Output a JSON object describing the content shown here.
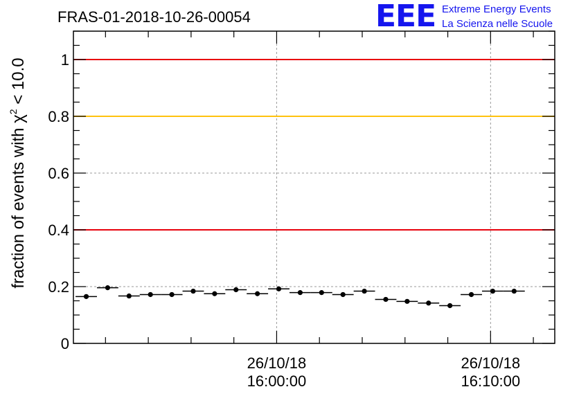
{
  "chart_data": {
    "type": "scatter",
    "title": "FRAS-01-2018-10-26-00054",
    "ylabel": "fraction of events with χ² < 10.0",
    "ylabel_prefix": "fraction of events with ",
    "ylabel_chi": "χ",
    "ylabel_sup": "2",
    "ylabel_suffix": " < 10.0",
    "xlabel": "",
    "ylim": [
      0,
      1.1
    ],
    "xlim_minutes": [
      -9.5,
      13.0
    ],
    "yticks": [
      0,
      0.2,
      0.4,
      0.6,
      0.8,
      1
    ],
    "ytick_labels": [
      "0",
      "0.2",
      "0.4",
      "0.6",
      "0.8",
      "1"
    ],
    "xticks_major": [
      {
        "minutes": 0,
        "date": "26/10/18",
        "time": "16:00:00"
      },
      {
        "minutes": 10,
        "date": "26/10/18",
        "time": "16:10:00"
      }
    ],
    "xticks_minor_minutes": [
      -8,
      -6,
      -4,
      -2,
      2,
      4,
      6,
      8,
      12
    ],
    "reference_lines": [
      {
        "y": 1.0,
        "color": "#e8000b"
      },
      {
        "y": 0.8,
        "color": "#ffc20e"
      },
      {
        "y": 0.4,
        "color": "#e8000b"
      }
    ],
    "grid": true,
    "bin_width_minutes": 1.0,
    "points": [
      {
        "x": -8.9,
        "y": 0.165
      },
      {
        "x": -7.9,
        "y": 0.196
      },
      {
        "x": -6.9,
        "y": 0.167
      },
      {
        "x": -5.9,
        "y": 0.172
      },
      {
        "x": -4.9,
        "y": 0.172
      },
      {
        "x": -3.9,
        "y": 0.184
      },
      {
        "x": -2.9,
        "y": 0.175
      },
      {
        "x": -1.9,
        "y": 0.189
      },
      {
        "x": -0.9,
        "y": 0.175
      },
      {
        "x": 0.1,
        "y": 0.192
      },
      {
        "x": 1.1,
        "y": 0.179
      },
      {
        "x": 2.1,
        "y": 0.179
      },
      {
        "x": 3.1,
        "y": 0.172
      },
      {
        "x": 4.1,
        "y": 0.184
      },
      {
        "x": 5.1,
        "y": 0.155
      },
      {
        "x": 6.1,
        "y": 0.148
      },
      {
        "x": 7.1,
        "y": 0.142
      },
      {
        "x": 8.1,
        "y": 0.133
      },
      {
        "x": 9.1,
        "y": 0.172
      },
      {
        "x": 10.1,
        "y": 0.184
      },
      {
        "x": 11.1,
        "y": 0.184
      }
    ],
    "marker_color": "#000000"
  },
  "logo": {
    "mark": "EEE",
    "line1": "Extreme Energy Events",
    "line2": "La Scienza nelle Scuole",
    "color": "#1515ee"
  }
}
